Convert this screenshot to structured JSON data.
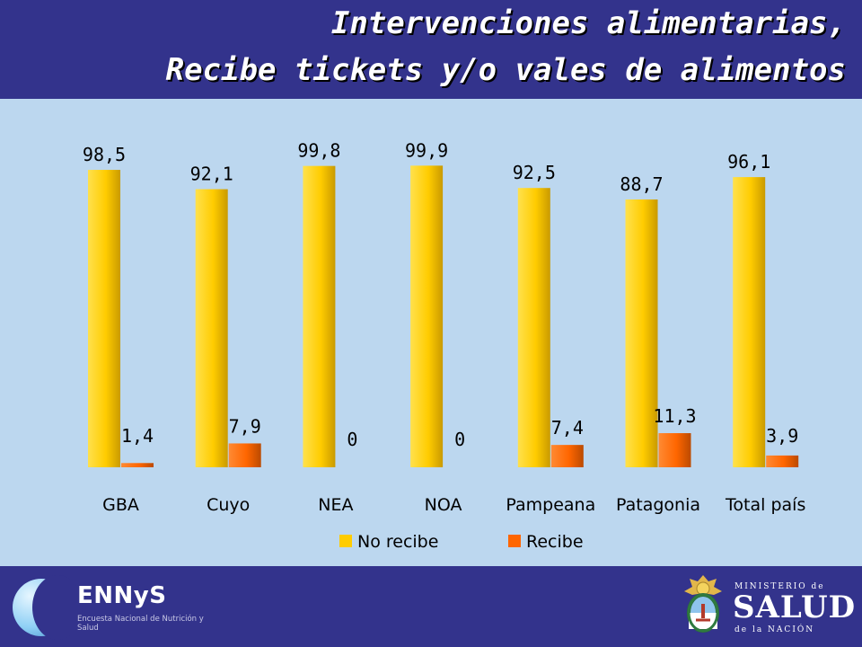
{
  "header": {
    "title_line1": "Intervenciones alimentarias,",
    "title_line2": "Recibe tickets y/o vales de alimentos"
  },
  "chart_data": {
    "type": "bar",
    "categories": [
      "GBA",
      "Cuyo",
      "NEA",
      "NOA",
      "Pampeana",
      "Patagonia",
      "Total país"
    ],
    "series": [
      {
        "name": "No recibe",
        "values": [
          98.5,
          92.1,
          99.8,
          99.9,
          92.5,
          88.7,
          96.1
        ],
        "labels": [
          "98,5",
          "92,1",
          "99,8",
          "99,9",
          "92,5",
          "88,7",
          "96,1"
        ],
        "color": "#ffcc00"
      },
      {
        "name": "Recibe",
        "values": [
          1.4,
          7.9,
          0,
          0,
          7.4,
          11.3,
          3.9
        ],
        "labels": [
          "1,4",
          "7,9",
          "0",
          "0",
          "7,4",
          "11,3",
          "3,9"
        ],
        "color": "#ff6600"
      }
    ],
    "ylim": [
      0,
      100
    ],
    "grid": false,
    "legend_position": "bottom"
  },
  "footer": {
    "ennys": {
      "name": "ENNyS",
      "subtitle": "Encuesta Nacional de Nutrición y Salud"
    },
    "ministry": {
      "top": "MINISTERIO de",
      "main": "SALUD",
      "bottom": "de la NACIÓN"
    }
  },
  "colors": {
    "header_bg": "#33338c",
    "plot_bg": "#bcd7ef",
    "no_recibe": "#ffcc00",
    "recibe": "#ff6600"
  }
}
